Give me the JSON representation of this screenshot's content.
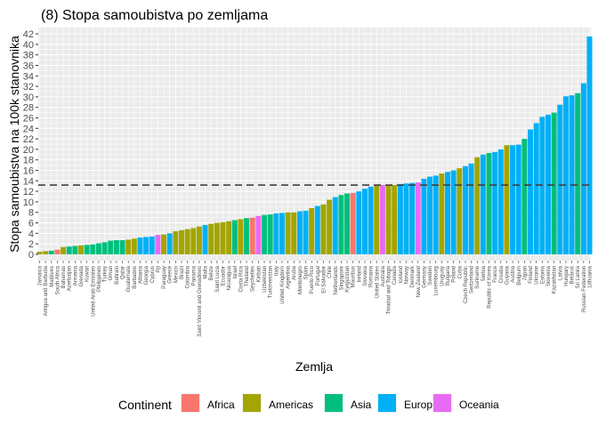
{
  "colors": {
    "Africa": "#F8766D",
    "Americas": "#A3A500",
    "Asia": "#00BF7D",
    "Europe": "#00B0F6",
    "Oceania": "#E76BF3"
  },
  "chart_data": {
    "type": "bar",
    "title": "(8) Stopa samoubistva po zemljama",
    "xlabel": "Zemlja",
    "ylabel": "Stopa samoubistva na 100k stanovnika",
    "ylim": [
      0,
      42
    ],
    "yticks": [
      0,
      2,
      4,
      6,
      8,
      10,
      12,
      14,
      16,
      18,
      20,
      22,
      24,
      26,
      28,
      30,
      32,
      34,
      36,
      38,
      40,
      42
    ],
    "grid": true,
    "legend_position": "bottom",
    "legend_title": "Continent",
    "legend": [
      "Africa",
      "Americas",
      "Asia",
      "Europe",
      "Oceania"
    ],
    "reference_line": {
      "y": 13.2,
      "style": "dashed"
    },
    "categories": [
      "Jamaica",
      "Antigua and Barbuda",
      "Maldives",
      "South Africa",
      "Bahamas",
      "Azerbaijan",
      "Armenia",
      "Grenada",
      "Kuwait",
      "United Arab Emirates",
      "Philippines",
      "Turkey",
      "Oman",
      "Bahrain",
      "Qatar",
      "Guatemala",
      "Barbados",
      "Albania",
      "Georgia",
      "Cyprus",
      "Fiji",
      "Paraguay",
      "Greece",
      "Mexico",
      "Brazil",
      "Colombia",
      "Panama",
      "Saint Vincent and Grenadines",
      "Malta",
      "Belize",
      "Saint Lucia",
      "Ecuador",
      "Nicaragua",
      "Israel",
      "Costa Rica",
      "Thailand",
      "Seychelles",
      "Kiribati",
      "Uzbekistan",
      "Turkmenistan",
      "Italy",
      "United Kingdom",
      "Argentina",
      "Aruba",
      "Montenegro",
      "Spain",
      "Puerto Rico",
      "Portugal",
      "El Salvador",
      "Chile",
      "Netherlands",
      "Singapore",
      "Kyrgyzstan",
      "Mauritius",
      "Ireland",
      "Slovakia",
      "Romania",
      "United States",
      "Australia",
      "Trinidad and Tobago",
      "Canada",
      "Iceland",
      "Norway",
      "Denmark",
      "New Zealand",
      "Germany",
      "Sweden",
      "Luxembourg",
      "Uruguay",
      "Bulgaria",
      "Poland",
      "Cuba",
      "Czech Republic",
      "Switzerland",
      "Suriname",
      "Serbia",
      "Republic of Korea",
      "France",
      "Croatia",
      "Guyana",
      "Austria",
      "Belgium",
      "Japan",
      "Finland",
      "Ukraine",
      "Estonia",
      "Slovenia",
      "Kazakhstan",
      "Latvia",
      "Hungary",
      "Belarus",
      "Sri Lanka",
      "Russian Federation",
      "Lithuania"
    ],
    "continents": [
      "Americas",
      "Americas",
      "Asia",
      "Africa",
      "Americas",
      "Asia",
      "Asia",
      "Americas",
      "Asia",
      "Asia",
      "Asia",
      "Asia",
      "Asia",
      "Asia",
      "Asia",
      "Americas",
      "Americas",
      "Europe",
      "Europe",
      "Europe",
      "Oceania",
      "Americas",
      "Europe",
      "Americas",
      "Americas",
      "Americas",
      "Americas",
      "Americas",
      "Europe",
      "Americas",
      "Americas",
      "Americas",
      "Americas",
      "Asia",
      "Americas",
      "Asia",
      "Africa",
      "Oceania",
      "Asia",
      "Asia",
      "Europe",
      "Europe",
      "Americas",
      "Americas",
      "Europe",
      "Europe",
      "Americas",
      "Europe",
      "Americas",
      "Americas",
      "Europe",
      "Asia",
      "Asia",
      "Africa",
      "Europe",
      "Europe",
      "Europe",
      "Americas",
      "Oceania",
      "Americas",
      "Americas",
      "Europe",
      "Europe",
      "Europe",
      "Oceania",
      "Europe",
      "Europe",
      "Europe",
      "Americas",
      "Europe",
      "Europe",
      "Americas",
      "Europe",
      "Europe",
      "Americas",
      "Europe",
      "Asia",
      "Europe",
      "Europe",
      "Americas",
      "Europe",
      "Europe",
      "Asia",
      "Europe",
      "Europe",
      "Europe",
      "Europe",
      "Asia",
      "Europe",
      "Europe",
      "Europe",
      "Asia",
      "Europe",
      "Europe"
    ],
    "values": [
      0.5,
      0.6,
      0.7,
      0.9,
      1.4,
      1.5,
      1.6,
      1.7,
      1.8,
      1.9,
      2.1,
      2.3,
      2.6,
      2.7,
      2.7,
      2.8,
      3.0,
      3.2,
      3.3,
      3.4,
      3.7,
      3.8,
      4.0,
      4.4,
      4.6,
      4.8,
      5.0,
      5.3,
      5.6,
      5.8,
      6.0,
      6.1,
      6.3,
      6.5,
      6.7,
      6.9,
      7.0,
      7.3,
      7.5,
      7.6,
      7.8,
      7.9,
      8.0,
      8.0,
      8.2,
      8.3,
      8.8,
      9.2,
      9.5,
      10.4,
      10.9,
      11.3,
      11.6,
      11.7,
      12.0,
      12.5,
      12.9,
      13.1,
      13.2,
      13.2,
      13.2,
      13.4,
      13.5,
      13.6,
      13.7,
      14.4,
      14.8,
      15.0,
      15.4,
      15.7,
      16.0,
      16.4,
      16.8,
      17.3,
      18.5,
      19.0,
      19.3,
      19.5,
      20.0,
      20.8,
      20.8,
      20.9,
      22.0,
      23.8,
      25.0,
      26.2,
      26.6,
      27.0,
      28.5,
      30.1,
      30.3,
      30.7,
      32.6,
      41.5
    ]
  }
}
